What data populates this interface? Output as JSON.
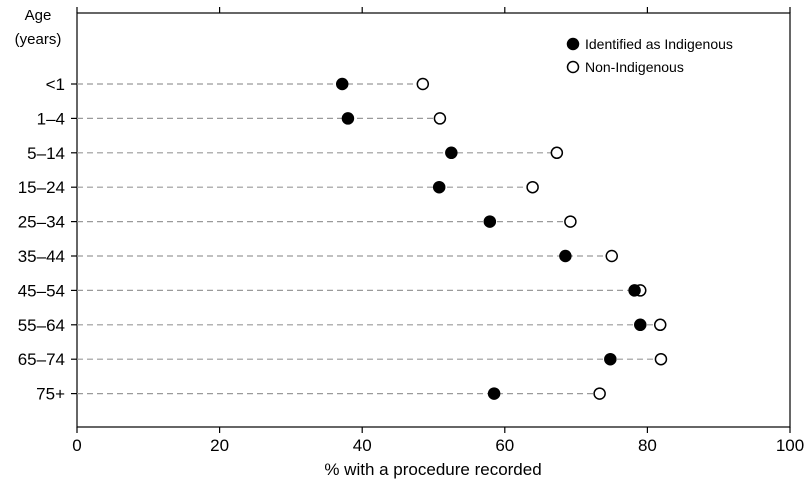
{
  "chart_data": {
    "type": "scatter",
    "title": "",
    "xlabel": "% with a procedure recorded",
    "ylabel": "Age (years)",
    "ylabel_line1": "Age",
    "ylabel_line2": "(years)",
    "xlim": [
      0,
      100
    ],
    "xticks": [
      "0",
      "20",
      "40",
      "60",
      "80",
      "100"
    ],
    "grid": false,
    "legend_position": "top-right",
    "categories": [
      "<1",
      "1–4",
      "5–14",
      "15–24",
      "25–34",
      "35–44",
      "45–54",
      "55–64",
      "65–74",
      "75+"
    ],
    "series": [
      {
        "name": "Identified as Indigenous",
        "marker": "filled-circle",
        "color": "#000000",
        "values": [
          37.2,
          38.0,
          52.5,
          50.8,
          57.9,
          68.5,
          78.2,
          79.0,
          74.8,
          58.5
        ]
      },
      {
        "name": "Non-Indigenous",
        "marker": "open-circle",
        "color": "#000000",
        "values": [
          48.5,
          50.9,
          67.3,
          63.9,
          69.2,
          75.0,
          79.0,
          81.8,
          81.9,
          73.3
        ]
      }
    ]
  }
}
